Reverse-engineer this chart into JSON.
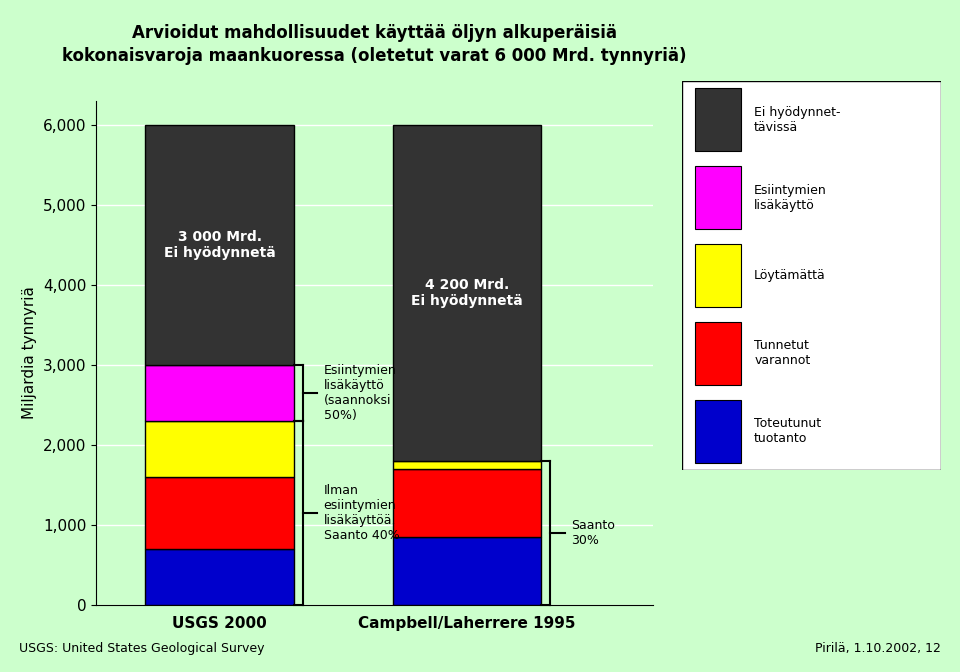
{
  "title_line1": "Arvioidut mahdollisuudet käyttää öljyn alkuperäisiä",
  "title_line2": "kokonaisvaroja maankuoressa (oletetut varat 6 000 Mrd. tynnyriä)",
  "ylabel": "Miljardia tynnyriä",
  "xlabel_usgs": "USGS 2000",
  "xlabel_campbell": "Campbell/Laherrere 1995",
  "footnote_left": "USGS: United States Geological Survey",
  "footnote_right": "Pirilä, 1.10.2002, 12",
  "yticks": [
    0,
    1000,
    2000,
    3000,
    4000,
    5000,
    6000
  ],
  "ytick_labels": [
    "0",
    "1,000",
    "2,000",
    "3,000",
    "4,000",
    "5,000",
    "6,000"
  ],
  "background_color": "#ccffcc",
  "dark_gray": "#333333",
  "magenta": "#ff00ff",
  "yellow": "#ffff00",
  "red": "#ff0000",
  "blue": "#0000cc",
  "usgs_values": [
    700,
    900,
    700,
    700,
    3000
  ],
  "campbell_values": [
    850,
    850,
    100,
    0,
    4200
  ],
  "usgs_label": "3 000 Mrd.\nEi hyödynnetä",
  "campbell_label": "4 200 Mrd.\nEi hyödynnetä",
  "esi_text": "Esiintymien\nlisäkäyttö\n(saannoksi\n50%)",
  "ilman_text": "Ilman\nesiintymien\nlisäkäyttöä.\nSaanto 40%",
  "saanto_text": "Saanto\n30%",
  "legend_labels": [
    "Ei hyödynnet-\ntävissä",
    "Esiintymien\nlisäkäyttö",
    "Löytämättä",
    "Tunnetut\nvarannot",
    "Toteutunut\ntuotanto"
  ]
}
